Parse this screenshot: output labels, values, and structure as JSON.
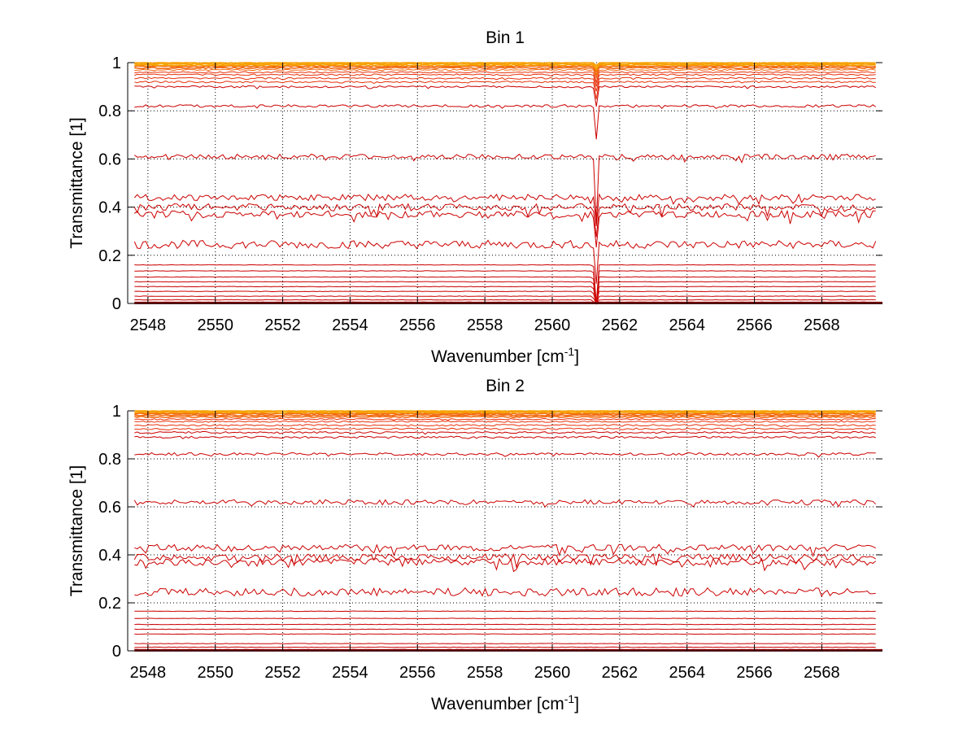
{
  "chart_data": [
    {
      "type": "line",
      "title": "Bin 1",
      "xlabel": "Wavenumber [cm",
      "xlabel_sup": "-1",
      "xlabel_end": "]",
      "ylabel": "Transmittance [1]",
      "xlim": [
        2547.4,
        2569.8
      ],
      "ylim": [
        0,
        1
      ],
      "grid": true,
      "xticks": [
        2548,
        2550,
        2552,
        2554,
        2556,
        2558,
        2560,
        2562,
        2564,
        2566,
        2568
      ],
      "yticks": [
        0,
        0.2,
        0.4,
        0.6,
        0.8,
        1
      ],
      "ytick_labels": [
        "0",
        "0.2",
        "0.4",
        "0.6",
        "0.8",
        "1"
      ],
      "colors": [
        "#cc0000",
        "#e8300a",
        "#f26a10",
        "#f5a000"
      ],
      "series_baselines": [
        0.005,
        0.015,
        0.03,
        0.05,
        0.07,
        0.09,
        0.11,
        0.135,
        0.16,
        0.245,
        0.37,
        0.4,
        0.44,
        0.61,
        0.82,
        0.9,
        0.92,
        0.935,
        0.95,
        0.96,
        0.97,
        0.978,
        0.985,
        0.99,
        0.995,
        1.0
      ],
      "features": [
        {
          "x": 2561.3,
          "depth_top": 0.15,
          "width": 0.08
        }
      ]
    },
    {
      "type": "line",
      "title": "Bin 2",
      "xlabel": "Wavenumber [cm",
      "xlabel_sup": "-1",
      "xlabel_end": "]",
      "ylabel": "Transmittance [1]",
      "xlim": [
        2547.4,
        2569.8
      ],
      "ylim": [
        0,
        1
      ],
      "grid": true,
      "xticks": [
        2548,
        2550,
        2552,
        2554,
        2556,
        2558,
        2560,
        2562,
        2564,
        2566,
        2568
      ],
      "yticks": [
        0,
        0.2,
        0.4,
        0.6,
        0.8,
        1
      ],
      "ytick_labels": [
        "0",
        "0.2",
        "0.4",
        "0.6",
        "0.8",
        "1"
      ],
      "colors": [
        "#cc0000",
        "#e8300a",
        "#f26a10",
        "#f5a000"
      ],
      "series_baselines": [
        0.005,
        0.015,
        0.03,
        0.07,
        0.09,
        0.11,
        0.135,
        0.165,
        0.245,
        0.37,
        0.39,
        0.43,
        0.62,
        0.82,
        0.89,
        0.91,
        0.925,
        0.94,
        0.955,
        0.965,
        0.975,
        0.982,
        0.988,
        0.993,
        0.997,
        1.0
      ],
      "features": []
    }
  ]
}
